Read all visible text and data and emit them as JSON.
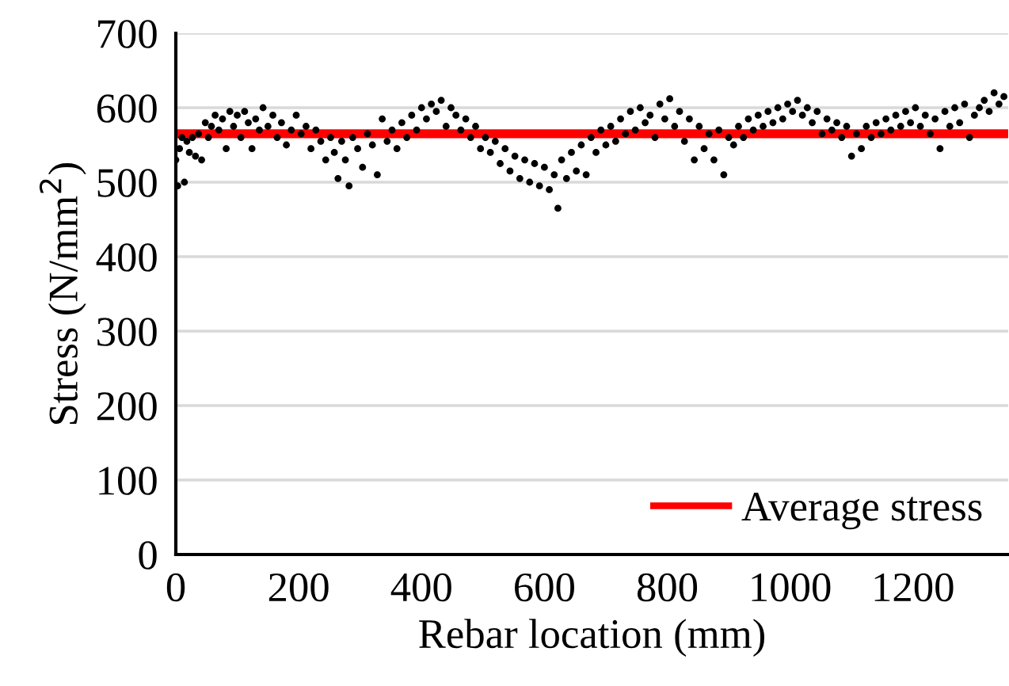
{
  "chart_data": {
    "type": "scatter",
    "xlabel": "Rebar location (mm)",
    "ylabel": "Stress (N/mm$^{2}$)",
    "xlim": [
      0,
      1355
    ],
    "xticks": [
      0,
      200,
      400,
      600,
      800,
      1000,
      1200
    ],
    "ylim": [
      0,
      700
    ],
    "yticks": [
      0,
      100,
      200,
      300,
      400,
      500,
      600,
      700
    ],
    "grid": "y",
    "legend": "bottom right",
    "marker": "circle",
    "series": [
      {
        "color": "#000000",
        "x": [
          0,
          3,
          6,
          10,
          14,
          18,
          22,
          27,
          32,
          37,
          42,
          48,
          53,
          58,
          64,
          70,
          76,
          82,
          88,
          94,
          100,
          106,
          112,
          118,
          124,
          130,
          136,
          142,
          150,
          158,
          165,
          172,
          180,
          188,
          196,
          204,
          212,
          220,
          228,
          236,
          244,
          252,
          258,
          264,
          270,
          276,
          282,
          288,
          296,
          304,
          312,
          320,
          328,
          336,
          344,
          352,
          360,
          368,
          376,
          384,
          392,
          400,
          408,
          416,
          424,
          432,
          440,
          448,
          456,
          464,
          472,
          480,
          488,
          496,
          504,
          512,
          520,
          528,
          536,
          544,
          552,
          560,
          568,
          576,
          584,
          592,
          600,
          608,
          616,
          622,
          628,
          636,
          644,
          652,
          660,
          668,
          676,
          684,
          692,
          700,
          708,
          716,
          724,
          732,
          740,
          748,
          756,
          764,
          772,
          780,
          788,
          796,
          804,
          812,
          820,
          828,
          836,
          844,
          852,
          860,
          868,
          876,
          884,
          892,
          900,
          908,
          916,
          924,
          932,
          940,
          948,
          956,
          964,
          972,
          980,
          988,
          996,
          1004,
          1012,
          1020,
          1028,
          1036,
          1044,
          1052,
          1060,
          1068,
          1076,
          1084,
          1092,
          1100,
          1108,
          1116,
          1124,
          1132,
          1140,
          1148,
          1156,
          1164,
          1172,
          1180,
          1188,
          1196,
          1204,
          1212,
          1220,
          1228,
          1236,
          1244,
          1252,
          1260,
          1268,
          1276,
          1284,
          1292,
          1300,
          1308,
          1316,
          1324,
          1332,
          1340,
          1348
        ],
        "values": [
          530,
          495,
          545,
          560,
          500,
          555,
          540,
          560,
          535,
          565,
          530,
          580,
          560,
          575,
          590,
          570,
          585,
          545,
          595,
          575,
          590,
          560,
          595,
          580,
          545,
          585,
          570,
          600,
          575,
          590,
          560,
          580,
          550,
          570,
          590,
          565,
          575,
          545,
          570,
          555,
          530,
          560,
          540,
          505,
          555,
          530,
          495,
          560,
          545,
          520,
          565,
          550,
          510,
          585,
          555,
          570,
          545,
          580,
          560,
          590,
          570,
          600,
          585,
          605,
          595,
          610,
          575,
          600,
          590,
          570,
          585,
          560,
          575,
          545,
          560,
          540,
          555,
          525,
          545,
          515,
          535,
          505,
          530,
          500,
          525,
          495,
          520,
          490,
          510,
          465,
          530,
          505,
          540,
          515,
          550,
          510,
          560,
          540,
          570,
          550,
          575,
          555,
          585,
          565,
          595,
          570,
          600,
          580,
          590,
          560,
          605,
          585,
          612,
          575,
          595,
          555,
          585,
          530,
          575,
          545,
          565,
          530,
          570,
          510,
          560,
          550,
          575,
          560,
          585,
          570,
          590,
          575,
          595,
          580,
          600,
          585,
          605,
          595,
          610,
          590,
          600,
          580,
          595,
          565,
          585,
          570,
          580,
          560,
          575,
          535,
          565,
          545,
          575,
          560,
          580,
          565,
          585,
          570,
          590,
          575,
          595,
          580,
          600,
          575,
          590,
          565,
          585,
          545,
          595,
          575,
          600,
          580,
          605,
          560,
          590,
          600,
          610,
          595,
          620,
          605,
          615
        ]
      }
    ],
    "ref_lines": [
      {
        "axis": "y",
        "value": 565,
        "label": "Average stress",
        "color": "#ff0000"
      }
    ]
  }
}
